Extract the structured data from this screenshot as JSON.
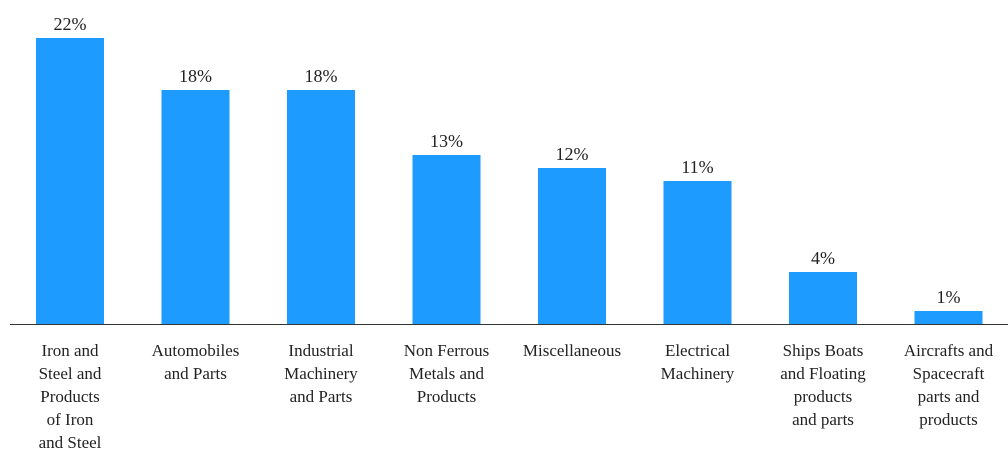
{
  "chart_data": {
    "type": "bar",
    "categories": [
      "Iron and Steel and Products of Iron and Steel",
      "Automobiles and Parts",
      "Industrial Machinery and Parts",
      "Non Ferrous Metals and Products",
      "Miscellaneous",
      "Electrical Machinery",
      "Ships Boats and Floating products and parts",
      "Aircrafts and Spacecraft parts and products"
    ],
    "category_label_lines": [
      [
        "Iron and",
        "Steel and",
        "Products",
        "of Iron",
        "and Steel"
      ],
      [
        "Automobiles",
        "and Parts"
      ],
      [
        "Industrial",
        "Machinery",
        "and Parts"
      ],
      [
        "Non Ferrous",
        "Metals and",
        "Products"
      ],
      [
        "Miscellaneous"
      ],
      [
        "Electrical",
        "Machinery"
      ],
      [
        "Ships Boats",
        "and Floating",
        "products",
        "and parts"
      ],
      [
        "Aircrafts and",
        "Spacecraft",
        "parts and",
        "products"
      ]
    ],
    "values": [
      22,
      18,
      18,
      13,
      12,
      11,
      4,
      1
    ],
    "data_labels": [
      "22%",
      "18%",
      "18%",
      "13%",
      "12%",
      "11%",
      "4%",
      "1%"
    ],
    "unit": "%",
    "title": "",
    "xlabel": "",
    "ylabel": "",
    "ylim": [
      0,
      22
    ],
    "grid": false,
    "legend": "none",
    "bar_color": "#1e9bff"
  }
}
